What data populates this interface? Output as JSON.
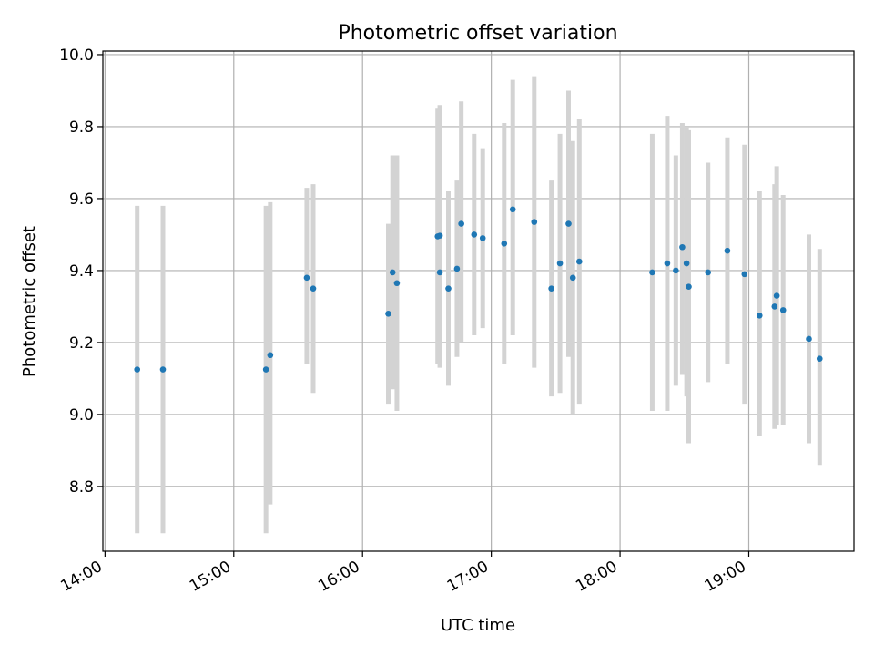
{
  "chart_data": {
    "type": "scatter",
    "title": "Photometric offset variation",
    "xlabel": "UTC time",
    "ylabel": "Photometric offset",
    "xlim": [
      "13:59",
      "19:49"
    ],
    "ylim": [
      8.62,
      10.01
    ],
    "x_ticks": [
      "14:00",
      "15:00",
      "16:00",
      "17:00",
      "18:00",
      "19:00"
    ],
    "y_ticks": [
      "8.8",
      "9.0",
      "9.2",
      "9.4",
      "9.6",
      "9.8",
      "10.0"
    ],
    "grid": true,
    "colors": {
      "point": "#1f77b4",
      "errorbar": "#d3d3d3",
      "grid": "#b0b0b0"
    },
    "series": [
      {
        "points": [
          {
            "x": "14:15",
            "y": 9.125,
            "lo": 8.67,
            "hi": 9.58
          },
          {
            "x": "14:27",
            "y": 9.125,
            "lo": 8.67,
            "hi": 9.58
          },
          {
            "x": "15:15",
            "y": 9.125,
            "lo": 8.67,
            "hi": 9.58
          },
          {
            "x": "15:17",
            "y": 9.165,
            "lo": 8.75,
            "hi": 9.59
          },
          {
            "x": "15:34",
            "y": 9.38,
            "lo": 9.14,
            "hi": 9.63
          },
          {
            "x": "15:37",
            "y": 9.35,
            "lo": 9.06,
            "hi": 9.64
          },
          {
            "x": "16:12",
            "y": 9.28,
            "lo": 9.03,
            "hi": 9.53
          },
          {
            "x": "16:14",
            "y": 9.395,
            "lo": 9.07,
            "hi": 9.72
          },
          {
            "x": "16:16",
            "y": 9.365,
            "lo": 9.01,
            "hi": 9.72
          },
          {
            "x": "16:35",
            "y": 9.495,
            "lo": 9.14,
            "hi": 9.85
          },
          {
            "x": "16:36",
            "y": 9.497,
            "lo": 9.13,
            "hi": 9.86
          },
          {
            "x": "16:36",
            "y": 9.395,
            "lo": 9.2,
            "hi": 9.62
          },
          {
            "x": "16:40",
            "y": 9.35,
            "lo": 9.08,
            "hi": 9.62
          },
          {
            "x": "16:44",
            "y": 9.405,
            "lo": 9.16,
            "hi": 9.65
          },
          {
            "x": "16:46",
            "y": 9.53,
            "lo": 9.2,
            "hi": 9.87
          },
          {
            "x": "16:52",
            "y": 9.5,
            "lo": 9.22,
            "hi": 9.78
          },
          {
            "x": "16:56",
            "y": 9.49,
            "lo": 9.24,
            "hi": 9.74
          },
          {
            "x": "17:06",
            "y": 9.475,
            "lo": 9.14,
            "hi": 9.81
          },
          {
            "x": "17:10",
            "y": 9.57,
            "lo": 9.22,
            "hi": 9.93
          },
          {
            "x": "17:20",
            "y": 9.535,
            "lo": 9.13,
            "hi": 9.94
          },
          {
            "x": "17:28",
            "y": 9.35,
            "lo": 9.05,
            "hi": 9.65
          },
          {
            "x": "17:32",
            "y": 9.42,
            "lo": 9.06,
            "hi": 9.78
          },
          {
            "x": "17:36",
            "y": 9.53,
            "lo": 9.16,
            "hi": 9.9
          },
          {
            "x": "17:38",
            "y": 9.38,
            "lo": 9.0,
            "hi": 9.76
          },
          {
            "x": "17:41",
            "y": 9.425,
            "lo": 9.03,
            "hi": 9.82
          },
          {
            "x": "18:15",
            "y": 9.395,
            "lo": 9.01,
            "hi": 9.78
          },
          {
            "x": "18:22",
            "y": 9.42,
            "lo": 9.01,
            "hi": 9.83
          },
          {
            "x": "18:26",
            "y": 9.4,
            "lo": 9.08,
            "hi": 9.72
          },
          {
            "x": "18:29",
            "y": 9.465,
            "lo": 9.11,
            "hi": 9.81
          },
          {
            "x": "18:31",
            "y": 9.42,
            "lo": 9.05,
            "hi": 9.8
          },
          {
            "x": "18:32",
            "y": 9.355,
            "lo": 8.92,
            "hi": 9.79
          },
          {
            "x": "18:41",
            "y": 9.395,
            "lo": 9.09,
            "hi": 9.7
          },
          {
            "x": "18:50",
            "y": 9.455,
            "lo": 9.14,
            "hi": 9.77
          },
          {
            "x": "18:58",
            "y": 9.39,
            "lo": 9.03,
            "hi": 9.75
          },
          {
            "x": "19:05",
            "y": 9.275,
            "lo": 8.94,
            "hi": 9.62
          },
          {
            "x": "19:12",
            "y": 9.3,
            "lo": 8.96,
            "hi": 9.64
          },
          {
            "x": "19:13",
            "y": 9.33,
            "lo": 8.97,
            "hi": 9.69
          },
          {
            "x": "19:16",
            "y": 9.29,
            "lo": 8.97,
            "hi": 9.61
          },
          {
            "x": "19:28",
            "y": 9.21,
            "lo": 8.92,
            "hi": 9.5
          },
          {
            "x": "19:33",
            "y": 9.155,
            "lo": 8.86,
            "hi": 9.46
          }
        ]
      }
    ]
  }
}
